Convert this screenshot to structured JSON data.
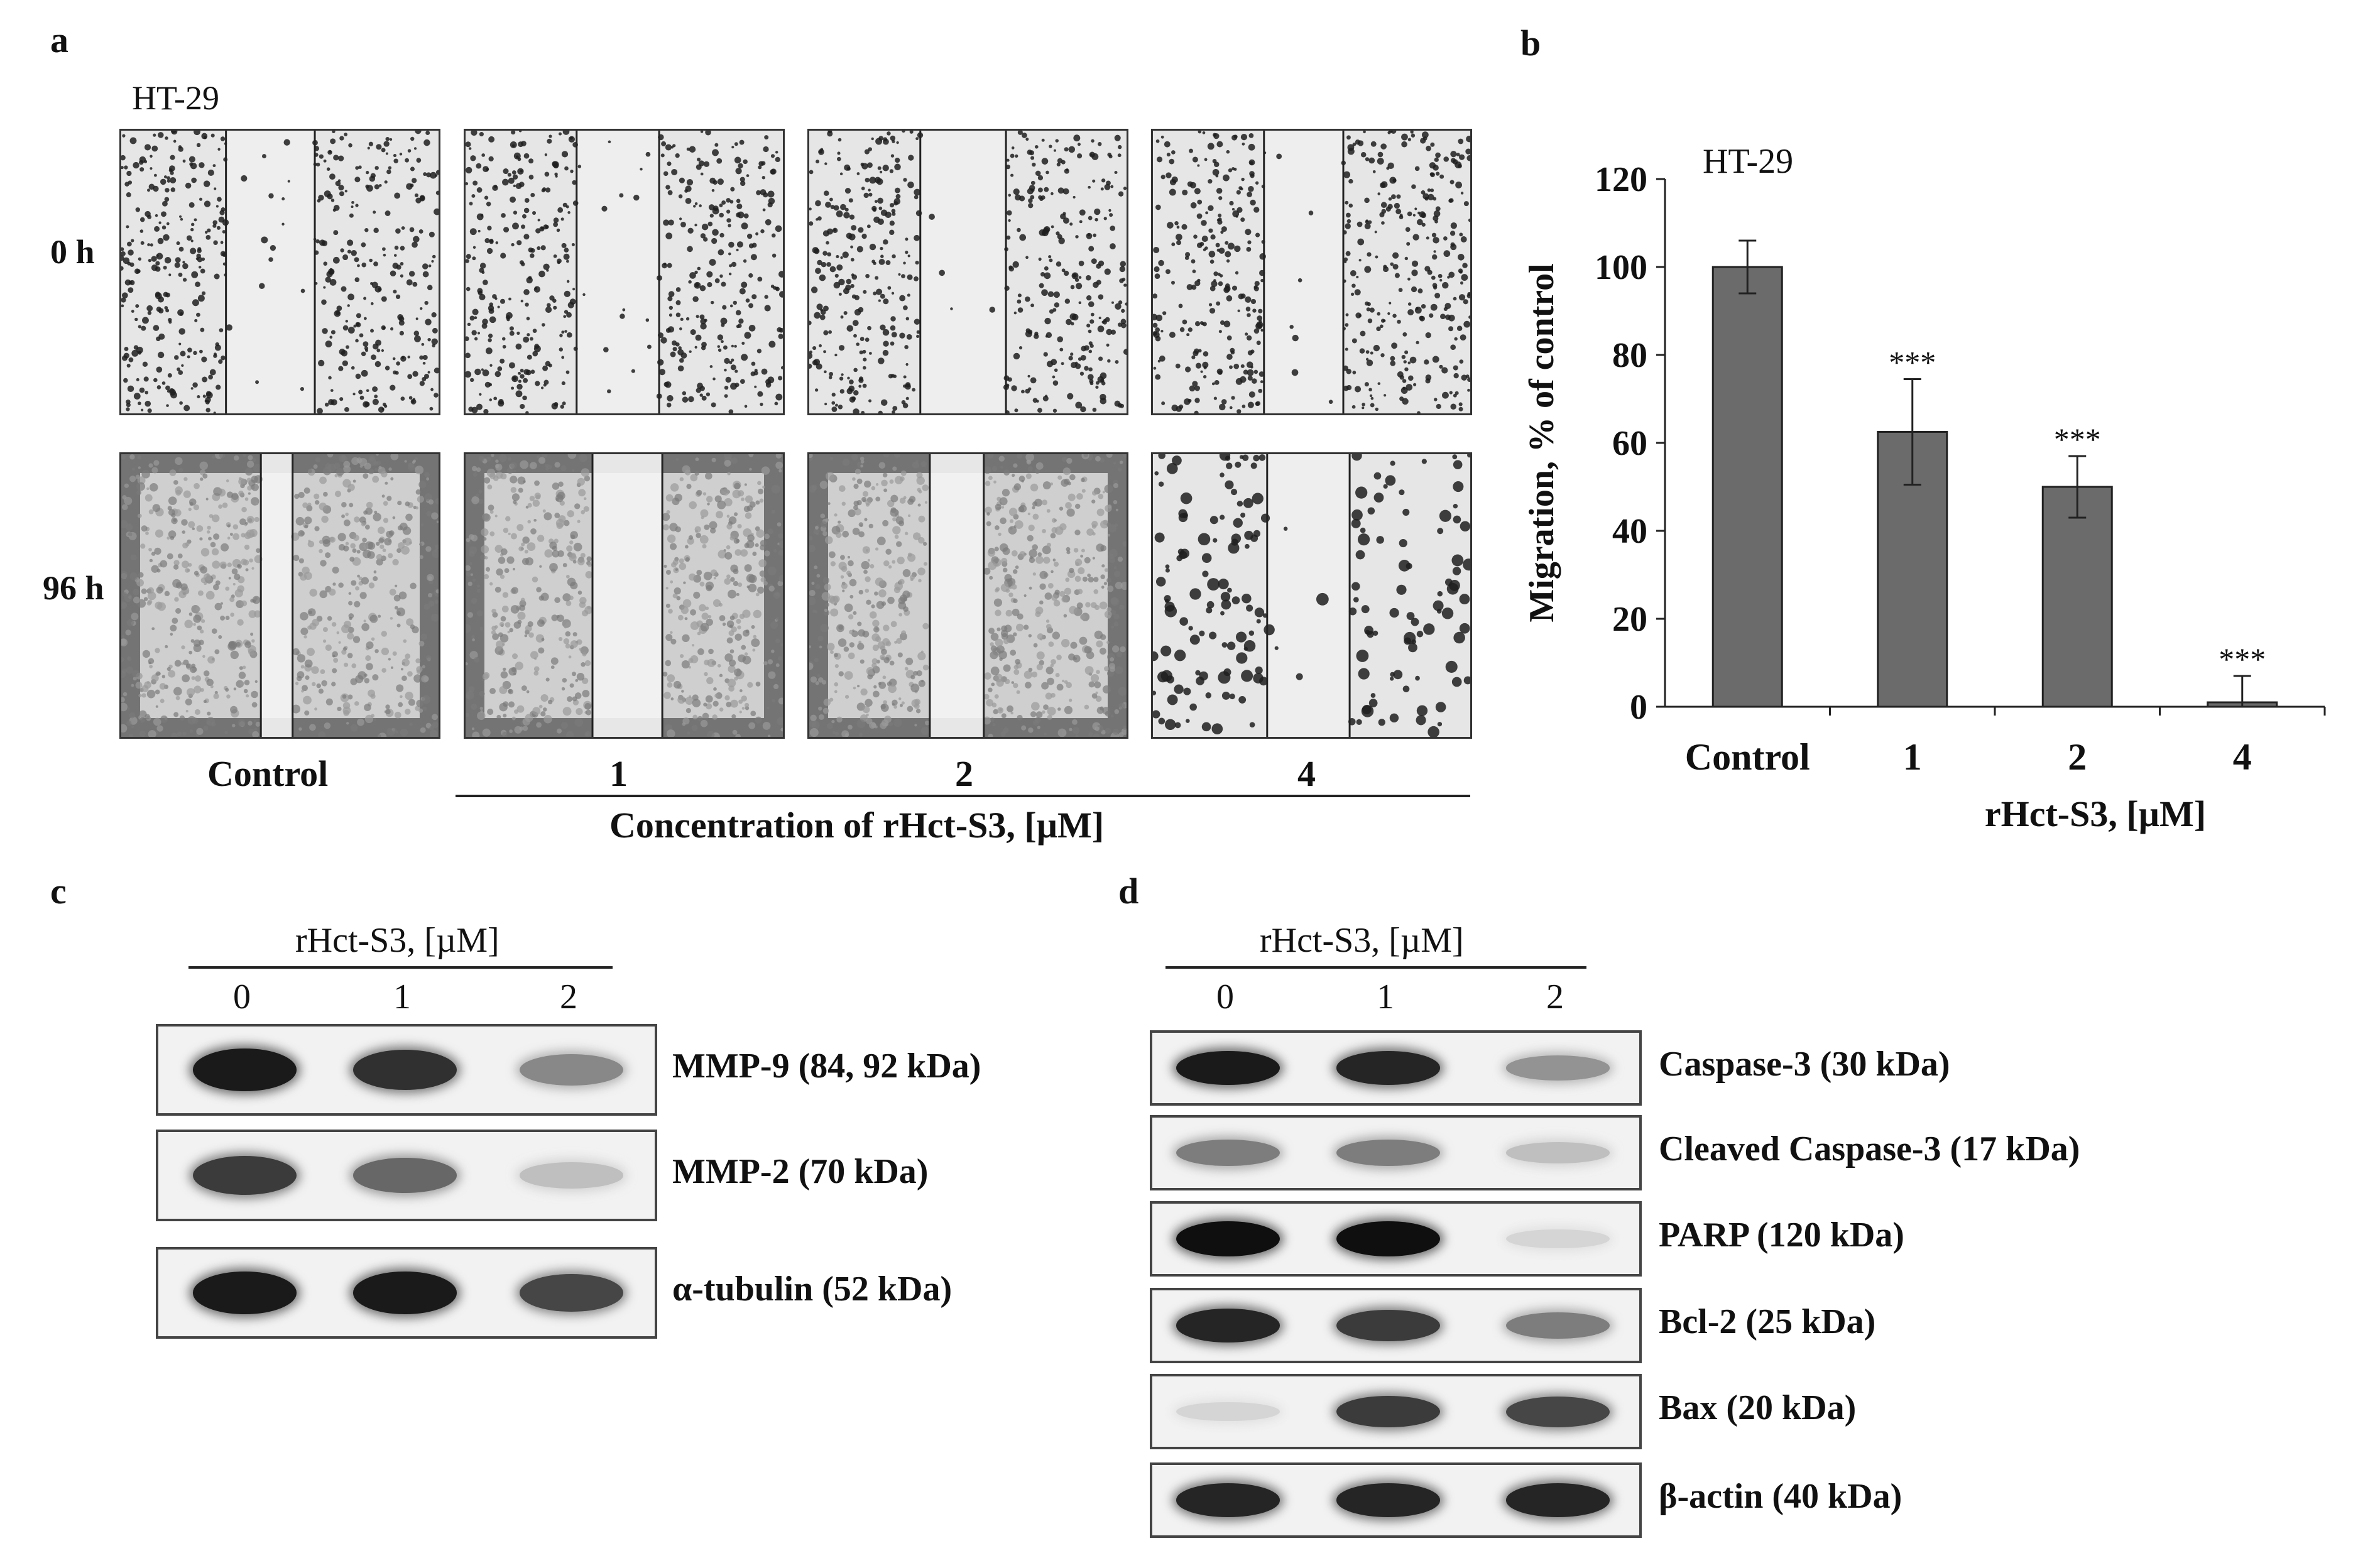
{
  "figure": {
    "panel_a": {
      "label": "a",
      "cell_line": "HT-29",
      "row_labels": [
        "0 h",
        "96 h"
      ],
      "column_labels": [
        "Control",
        "1",
        "2",
        "4"
      ],
      "axis_caption": "Concentration of rHct-S3, [µM]"
    },
    "panel_b": {
      "label": "b",
      "chart_title": "HT-29",
      "significance": [
        "***",
        "***",
        "***"
      ]
    },
    "panel_c": {
      "label": "c",
      "header": "rHct-S3, [µM]",
      "lanes": [
        "0",
        "1",
        "2"
      ],
      "bands": [
        {
          "label": "MMP-9 (84, 92 kDa)",
          "intensity": [
            0.95,
            0.85,
            0.45
          ]
        },
        {
          "label": "MMP-2 (70 kDa)",
          "intensity": [
            0.8,
            0.6,
            0.2
          ]
        },
        {
          "label": "α-tubulin (52 kDa)",
          "intensity": [
            0.95,
            0.95,
            0.75
          ]
        }
      ]
    },
    "panel_d": {
      "label": "d",
      "header": "rHct-S3, [µM]",
      "lanes": [
        "0",
        "1",
        "2"
      ],
      "bands": [
        {
          "label": "Caspase-3 (30 kDa)",
          "intensity": [
            0.95,
            0.9,
            0.4
          ]
        },
        {
          "label": "Cleaved Caspase-3 (17 kDa)",
          "intensity": [
            0.5,
            0.5,
            0.2
          ]
        },
        {
          "label": "PARP (120 kDa)",
          "intensity": [
            1.0,
            1.0,
            0.1
          ]
        },
        {
          "label": "Bcl-2 (25 kDa)",
          "intensity": [
            0.9,
            0.8,
            0.5
          ]
        },
        {
          "label": "Bax (20 kDa)",
          "intensity": [
            0.1,
            0.8,
            0.75
          ]
        },
        {
          "label": "β-actin (40 kDa)",
          "intensity": [
            0.9,
            0.9,
            0.9
          ]
        }
      ]
    }
  },
  "chart_data": {
    "type": "bar",
    "title": "HT-29",
    "xlabel": "rHct-S3, [µM]",
    "ylabel": "Migration, % of control",
    "categories": [
      "Control",
      "1",
      "2",
      "4"
    ],
    "values": [
      100,
      62.5,
      50,
      1
    ],
    "errors": [
      6,
      12,
      7,
      6
    ],
    "significance": [
      "",
      "***",
      "***",
      "***"
    ],
    "ylim": [
      0,
      120
    ],
    "yticks": [
      0,
      20,
      40,
      60,
      80,
      100,
      120
    ],
    "grid": false,
    "bar_color": "#6b6b6b"
  }
}
